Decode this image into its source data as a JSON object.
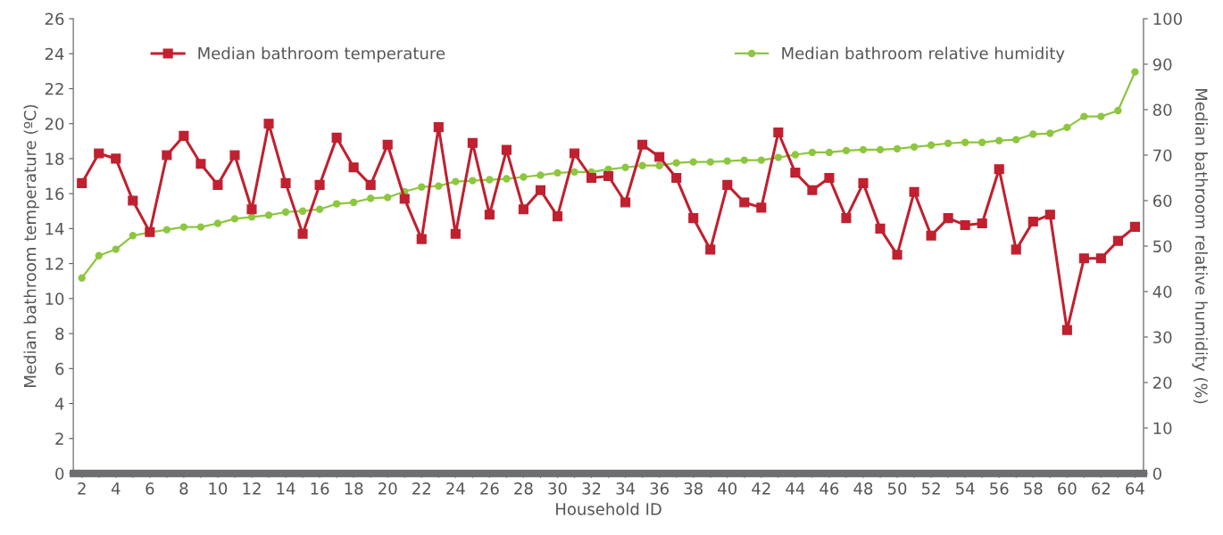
{
  "chart_data": {
    "type": "line",
    "xlabel": "Household ID",
    "ylabel": "Median bathroom temperature (ºC)",
    "y2label": "Median bathroom relative humidity (%)",
    "x": [
      2,
      3,
      4,
      5,
      6,
      7,
      8,
      9,
      10,
      11,
      12,
      13,
      14,
      15,
      16,
      17,
      18,
      19,
      20,
      21,
      22,
      23,
      24,
      25,
      26,
      27,
      28,
      29,
      30,
      31,
      32,
      33,
      34,
      35,
      36,
      37,
      38,
      39,
      40,
      41,
      42,
      43,
      44,
      45,
      46,
      47,
      48,
      49,
      50,
      51,
      52,
      53,
      54,
      55,
      56,
      57,
      58,
      59,
      60,
      61,
      62,
      63,
      64
    ],
    "series": [
      {
        "name": "Median bathroom temperature",
        "color": "#c0202f",
        "marker": "square",
        "values": [
          16.6,
          18.3,
          18.0,
          15.6,
          13.8,
          18.2,
          19.3,
          17.7,
          16.5,
          18.2,
          15.1,
          20.0,
          16.6,
          13.7,
          16.5,
          19.2,
          17.5,
          16.5,
          18.8,
          15.7,
          13.4,
          19.8,
          13.7,
          18.9,
          14.8,
          18.5,
          15.1,
          16.2,
          14.7,
          18.3,
          16.9,
          17.0,
          15.5,
          18.8,
          18.1,
          16.9,
          14.6,
          12.8,
          16.5,
          15.5,
          15.2,
          19.5,
          17.2,
          16.2,
          16.9,
          14.6,
          16.6,
          14.0,
          12.5,
          16.1,
          13.6,
          14.6,
          14.2,
          14.3,
          17.4,
          12.8,
          14.4,
          14.8,
          8.2,
          12.3,
          12.3,
          13.3,
          14.1
        ]
      },
      {
        "name": "Median bathroom relative humidity",
        "color": "#8dc63f",
        "marker": "circle",
        "axis": "y2",
        "values": [
          43.0,
          47.9,
          49.3,
          52.3,
          53.0,
          53.6,
          54.2,
          54.2,
          55.0,
          56.0,
          56.4,
          56.8,
          57.5,
          57.7,
          58.1,
          59.3,
          59.6,
          60.5,
          60.7,
          62.0,
          63.0,
          63.2,
          64.2,
          64.4,
          64.6,
          64.8,
          65.2,
          65.6,
          66.1,
          66.3,
          66.3,
          66.9,
          67.3,
          67.7,
          67.7,
          68.3,
          68.5,
          68.5,
          68.7,
          68.9,
          68.9,
          69.5,
          70.1,
          70.6,
          70.6,
          71.0,
          71.2,
          71.2,
          71.4,
          71.8,
          72.2,
          72.6,
          72.8,
          72.8,
          73.2,
          73.4,
          74.6,
          74.8,
          76.1,
          78.5,
          78.5,
          79.8,
          88.3
        ]
      }
    ],
    "xlim": [
      1.5,
      64.5
    ],
    "xticks": [
      2,
      {
        "value": 3,
        "label": null
      },
      4,
      {
        "value": 5,
        "label": null
      },
      6,
      {
        "value": 7,
        "label": null
      },
      8,
      {
        "value": 9,
        "label": null
      },
      10,
      {
        "value": 11,
        "label": null
      },
      12,
      {
        "value": 13,
        "label": null
      },
      14,
      {
        "value": 15,
        "label": null
      },
      16,
      {
        "value": 17,
        "label": null
      },
      18,
      {
        "value": 19,
        "label": null
      },
      20,
      {
        "value": 21,
        "label": null
      },
      22,
      {
        "value": 23,
        "label": null
      },
      24,
      {
        "value": 25,
        "label": null
      },
      26,
      {
        "value": 27,
        "label": null
      },
      28,
      {
        "value": 29,
        "label": null
      },
      30,
      {
        "value": 31,
        "label": null
      },
      32,
      {
        "value": 33,
        "label": null
      },
      34,
      {
        "value": 35,
        "label": null
      },
      36,
      {
        "value": 37,
        "label": null
      },
      38,
      {
        "value": 39,
        "label": null
      },
      40,
      {
        "value": 41,
        "label": null
      },
      42,
      {
        "value": 43,
        "label": null
      },
      44,
      {
        "value": 45,
        "label": null
      },
      46,
      {
        "value": 47,
        "label": null
      },
      48,
      {
        "value": 49,
        "label": null
      },
      50,
      {
        "value": 51,
        "label": null
      },
      52,
      {
        "value": 53,
        "label": null
      },
      54,
      {
        "value": 55,
        "label": null
      },
      56,
      {
        "value": 57,
        "label": null
      },
      58,
      {
        "value": 59,
        "label": null
      },
      60,
      {
        "value": 61,
        "label": null
      },
      62,
      {
        "value": 63,
        "label": null
      },
      64
    ],
    "ylim": [
      0,
      26
    ],
    "yticks": [
      0,
      2,
      4,
      6,
      8,
      10,
      12,
      14,
      16,
      18,
      20,
      22,
      24,
      26
    ],
    "y2lim": [
      0,
      100
    ],
    "y2ticks": [
      0,
      10,
      20,
      30,
      40,
      50,
      60,
      70,
      80,
      90,
      100
    ],
    "grid": false,
    "legend": "top",
    "line_style": "solid"
  }
}
